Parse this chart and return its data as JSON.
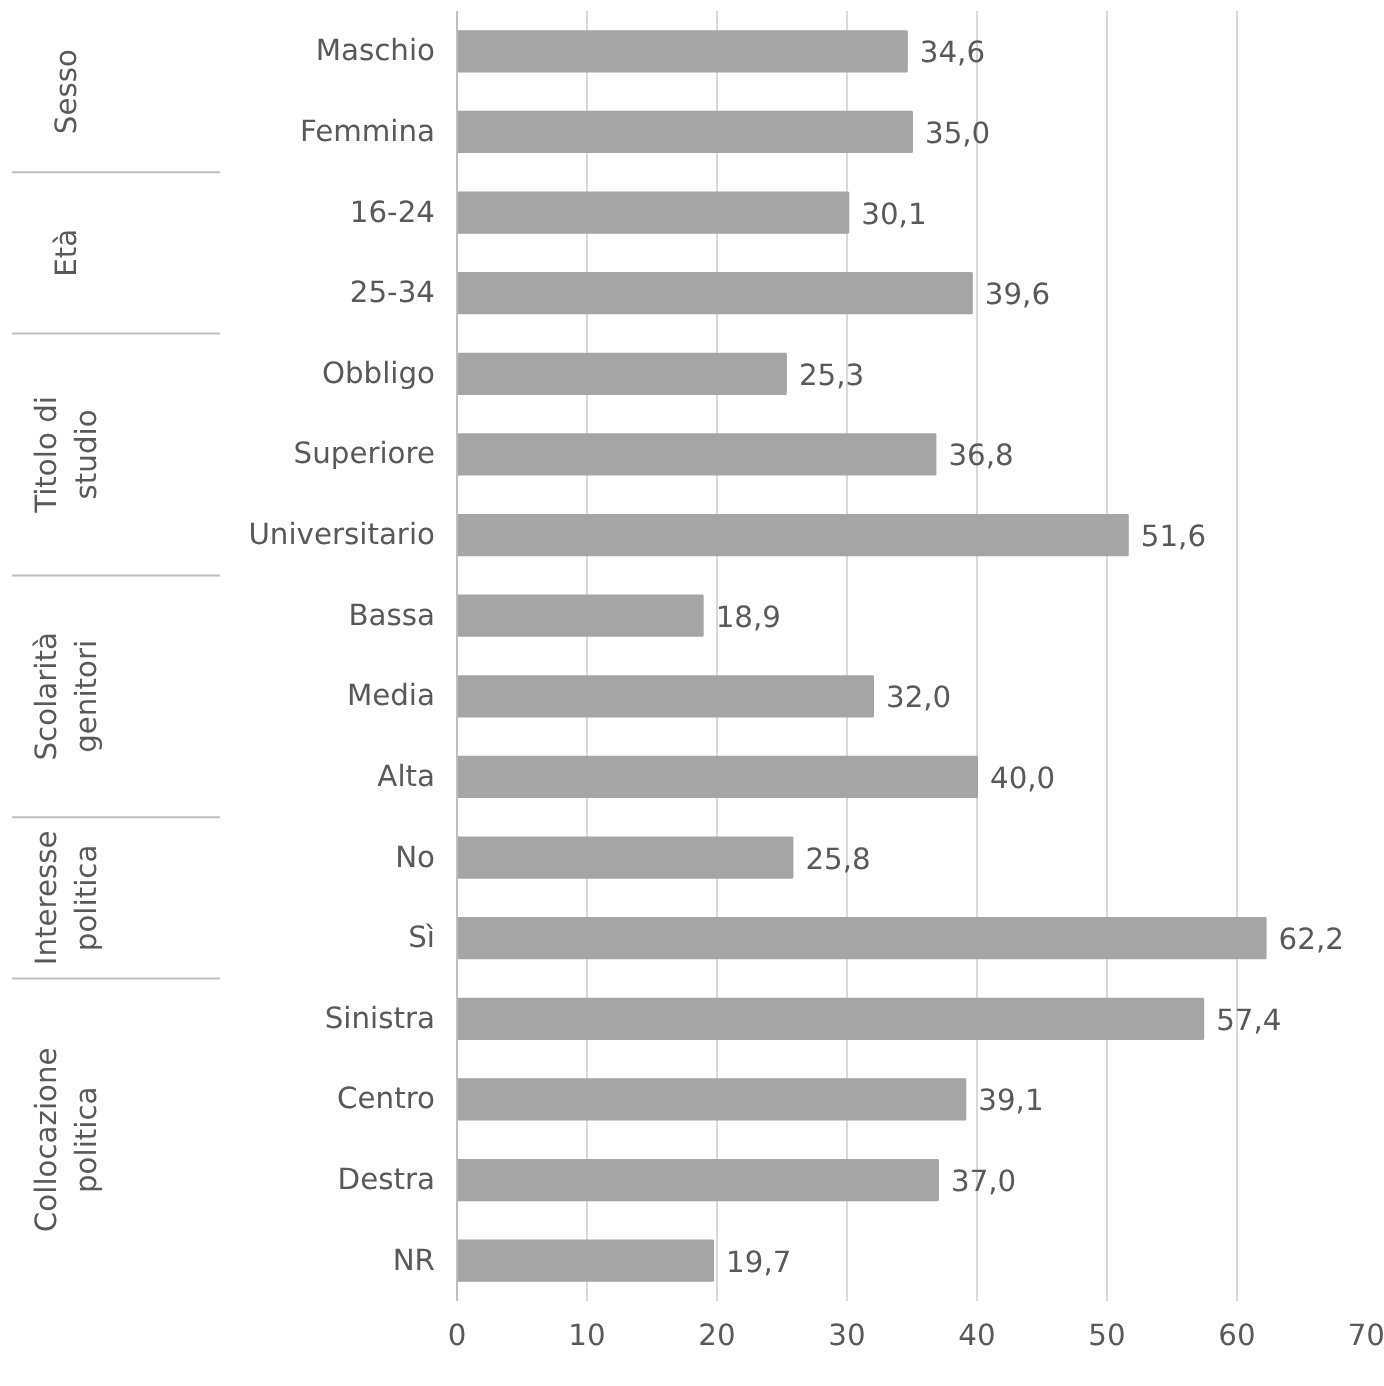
{
  "chart_data": {
    "type": "bar",
    "orientation": "horizontal",
    "categories": [
      "Maschio",
      "Femmina",
      "16-24",
      "25-34",
      "Obbligo",
      "Superiore",
      "Universitario",
      "Bassa",
      "Media",
      "Alta",
      "No",
      "Sì",
      "Sinistra",
      "Centro",
      "Destra",
      "NR"
    ],
    "values": [
      34.6,
      35.0,
      30.1,
      39.6,
      25.3,
      36.8,
      51.6,
      18.9,
      32.0,
      40.0,
      25.8,
      62.2,
      57.4,
      39.1,
      37.0,
      19.7
    ],
    "value_labels": [
      "34,6",
      "35,0",
      "30,1",
      "39,6",
      "25,3",
      "36,8",
      "51,6",
      "18,9",
      "32,0",
      "40,0",
      "25,8",
      "62,2",
      "57,4",
      "39,1",
      "37,0",
      "19,7"
    ],
    "color": "#a5a5a5",
    "xlim": [
      0,
      70
    ],
    "xticks": [
      0,
      10,
      20,
      30,
      40,
      50,
      60,
      70
    ],
    "grid": "x",
    "annotations": [
      "Sesso",
      "Età",
      "Titolo di studio",
      "Scolarità genitori",
      "Interesse politica",
      "Collocazione politica"
    ]
  }
}
